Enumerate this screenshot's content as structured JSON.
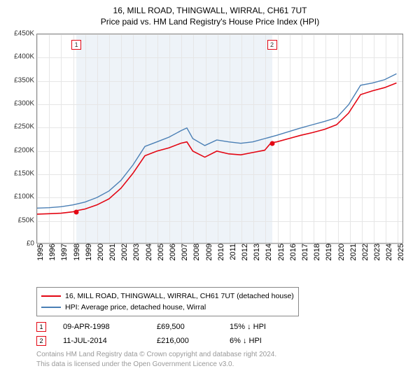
{
  "title": "16, MILL ROAD, THINGWALL, WIRRAL, CH61 7UT",
  "subtitle": "Price paid vs. HM Land Registry's House Price Index (HPI)",
  "chart": {
    "type": "line",
    "background_color": "#ffffff",
    "shaded_color": "#eef3f8",
    "grid_color": "#e6e6e6",
    "border_color": "#888888",
    "y_axis": {
      "min": 0,
      "max": 450000,
      "tick_step": 50000,
      "prefix": "£",
      "format": "K",
      "label_fontsize": 10
    },
    "x_axis": {
      "min": 1995,
      "max": 2025.5,
      "ticks": [
        1995,
        1996,
        1997,
        1998,
        1999,
        2000,
        2001,
        2002,
        2003,
        2004,
        2005,
        2006,
        2007,
        2008,
        2009,
        2010,
        2011,
        2012,
        2013,
        2014,
        2015,
        2016,
        2017,
        2018,
        2019,
        2020,
        2021,
        2022,
        2023,
        2024,
        2025
      ],
      "label_rotation": -90,
      "label_fontsize": 11
    },
    "shaded_span": {
      "start": 1998.27,
      "end": 2014.53
    },
    "series": [
      {
        "name": "16, MILL ROAD, THINGWALL, WIRRAL, CH61 7UT (detached house)",
        "color": "#e30613",
        "line_width": 1.6,
        "data": [
          [
            1995,
            62000
          ],
          [
            1996,
            63000
          ],
          [
            1997,
            64000
          ],
          [
            1998,
            67000
          ],
          [
            1998.27,
            69500
          ],
          [
            1999,
            73000
          ],
          [
            2000,
            82000
          ],
          [
            2001,
            95000
          ],
          [
            2002,
            118000
          ],
          [
            2003,
            150000
          ],
          [
            2004,
            188000
          ],
          [
            2005,
            198000
          ],
          [
            2006,
            205000
          ],
          [
            2007,
            215000
          ],
          [
            2007.5,
            218000
          ],
          [
            2008,
            198000
          ],
          [
            2009,
            185000
          ],
          [
            2010,
            198000
          ],
          [
            2011,
            192000
          ],
          [
            2012,
            190000
          ],
          [
            2013,
            195000
          ],
          [
            2014,
            200000
          ],
          [
            2014.53,
            216000
          ],
          [
            2015,
            218000
          ],
          [
            2016,
            225000
          ],
          [
            2017,
            232000
          ],
          [
            2018,
            238000
          ],
          [
            2019,
            245000
          ],
          [
            2020,
            255000
          ],
          [
            2021,
            280000
          ],
          [
            2022,
            320000
          ],
          [
            2023,
            328000
          ],
          [
            2024,
            335000
          ],
          [
            2025,
            345000
          ]
        ]
      },
      {
        "name": "HPI: Average price, detached house, Wirral",
        "color": "#4a7fb5",
        "line_width": 1.4,
        "data": [
          [
            1995,
            75000
          ],
          [
            1996,
            76000
          ],
          [
            1997,
            78000
          ],
          [
            1998,
            82000
          ],
          [
            1999,
            88000
          ],
          [
            2000,
            98000
          ],
          [
            2001,
            112000
          ],
          [
            2002,
            135000
          ],
          [
            2003,
            168000
          ],
          [
            2004,
            208000
          ],
          [
            2005,
            218000
          ],
          [
            2006,
            228000
          ],
          [
            2007,
            242000
          ],
          [
            2007.5,
            248000
          ],
          [
            2008,
            225000
          ],
          [
            2009,
            210000
          ],
          [
            2010,
            222000
          ],
          [
            2011,
            218000
          ],
          [
            2012,
            215000
          ],
          [
            2013,
            218000
          ],
          [
            2014,
            225000
          ],
          [
            2015,
            232000
          ],
          [
            2016,
            240000
          ],
          [
            2017,
            248000
          ],
          [
            2018,
            255000
          ],
          [
            2019,
            262000
          ],
          [
            2020,
            270000
          ],
          [
            2021,
            298000
          ],
          [
            2022,
            340000
          ],
          [
            2023,
            345000
          ],
          [
            2024,
            352000
          ],
          [
            2025,
            365000
          ]
        ]
      }
    ],
    "markers": [
      {
        "n": "1",
        "x": 1998.27,
        "y": 69500,
        "box_color": "#e30613",
        "dot_color": "#e30613"
      },
      {
        "n": "2",
        "x": 2014.53,
        "y": 216000,
        "box_color": "#e30613",
        "dot_color": "#e30613"
      }
    ]
  },
  "legend": {
    "items": [
      {
        "label": "16, MILL ROAD, THINGWALL, WIRRAL, CH61 7UT (detached house)",
        "color": "#e30613"
      },
      {
        "label": "HPI: Average price, detached house, Wirral",
        "color": "#4a7fb5"
      }
    ]
  },
  "sales": [
    {
      "n": "1",
      "box_color": "#e30613",
      "date": "09-APR-1998",
      "price": "£69,500",
      "delta": "15% ↓ HPI"
    },
    {
      "n": "2",
      "box_color": "#e30613",
      "date": "11-JUL-2014",
      "price": "£216,000",
      "delta": "6% ↓ HPI"
    }
  ],
  "footnote": {
    "line1": "Contains HM Land Registry data © Crown copyright and database right 2024.",
    "line2": "This data is licensed under the Open Government Licence v3.0."
  }
}
